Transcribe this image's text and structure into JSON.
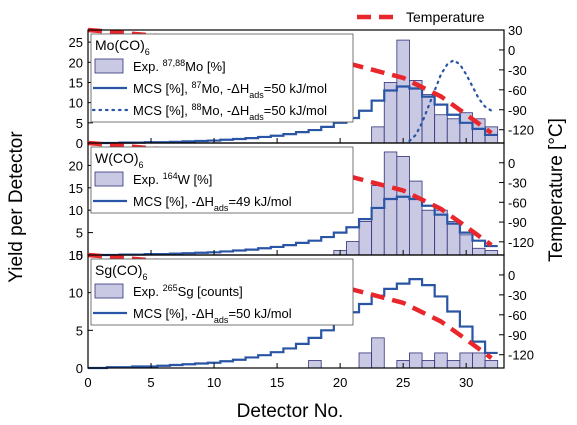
{
  "chart_data": {
    "type": "bar",
    "colors": {
      "bar_fill": "#c9c9e3",
      "bar_stroke": "#30307a",
      "mcs_line": "#2a55a5",
      "temperature": "#e8262b",
      "axis": "#000000"
    },
    "legend_top": {
      "label": "Temperature",
      "placement": "top-right"
    },
    "xlabel": "Detector No.",
    "ylabel_left": "Yield per Detector",
    "ylabel_right": "Temperature [°C]",
    "xlim": [
      0,
      33
    ],
    "x_ticks": [
      "0",
      "5",
      "10",
      "15",
      "20",
      "25",
      "30"
    ],
    "panels": [
      {
        "id": "mo",
        "compound": {
          "base": "Mo(CO)",
          "sub": "6"
        },
        "ylim": [
          0,
          28
        ],
        "y_ticks": [
          "0",
          "5",
          "10",
          "15",
          "20",
          "25"
        ],
        "temp_ticks": [
          "30",
          "0",
          "-30",
          "-60",
          "-90",
          "-120"
        ],
        "legend": [
          {
            "kind": "bar",
            "parts": [
              [
                "t",
                "Exp. "
              ],
              [
                "sup",
                "87,88"
              ],
              [
                "t",
                "Mo [%]"
              ]
            ]
          },
          {
            "kind": "solid",
            "parts": [
              [
                "t",
                "MCS [%], "
              ],
              [
                "sup",
                "87"
              ],
              [
                "t",
                "Mo, -ΔH"
              ],
              [
                "sub",
                "ads"
              ],
              [
                "t",
                "=50 kJ/mol"
              ]
            ]
          },
          {
            "kind": "dot",
            "parts": [
              [
                "t",
                "MCS [%], "
              ],
              [
                "sup",
                "88"
              ],
              [
                "t",
                "Mo, -ΔH"
              ],
              [
                "sub",
                "ads"
              ],
              [
                "t",
                "=50 kJ/mol"
              ]
            ]
          }
        ],
        "bars": [
          {
            "detector": 23,
            "value": 4
          },
          {
            "detector": 24,
            "value": 15
          },
          {
            "detector": 25,
            "value": 25.5
          },
          {
            "detector": 26,
            "value": 15.5
          },
          {
            "detector": 27,
            "value": 12
          },
          {
            "detector": 28,
            "value": 7
          },
          {
            "detector": 29,
            "value": 6
          },
          {
            "detector": 30,
            "value": 7.5
          },
          {
            "detector": 31,
            "value": 6
          },
          {
            "detector": 32,
            "value": 4
          }
        ],
        "mcs_solid": [
          0,
          0,
          0,
          0.1,
          0.1,
          0.2,
          0.2,
          0.3,
          0.4,
          0.5,
          0.6,
          0.8,
          1.0,
          1.2,
          1.5,
          1.8,
          2.2,
          2.7,
          3.2,
          4.0,
          5.0,
          6.2,
          8.0,
          10.5,
          13.0,
          14.0,
          13.5,
          11.5,
          9.5,
          7.0,
          5.0,
          3.5,
          2.0
        ],
        "mcs_dotted": [
          {
            "x": 25.5,
            "y": 0.5
          },
          {
            "x": 26,
            "y": 2
          },
          {
            "x": 26.5,
            "y": 5
          },
          {
            "x": 27,
            "y": 9
          },
          {
            "x": 27.5,
            "y": 13
          },
          {
            "x": 28,
            "y": 17
          },
          {
            "x": 28.5,
            "y": 19.5
          },
          {
            "x": 29,
            "y": 20.5
          },
          {
            "x": 29.5,
            "y": 19.5
          },
          {
            "x": 30,
            "y": 17
          },
          {
            "x": 30.5,
            "y": 14
          },
          {
            "x": 31,
            "y": 11
          },
          {
            "x": 31.5,
            "y": 9
          },
          {
            "x": 32,
            "y": 8
          }
        ],
        "temperature": [
          {
            "x": 0,
            "temp": 30
          },
          {
            "x": 5,
            "temp": 22
          },
          {
            "x": 10,
            "temp": 12
          },
          {
            "x": 15,
            "temp": 0
          },
          {
            "x": 20,
            "temp": -17
          },
          {
            "x": 25,
            "temp": -42
          },
          {
            "x": 28,
            "temp": -70
          },
          {
            "x": 30,
            "temp": -97
          },
          {
            "x": 32,
            "temp": -125
          }
        ]
      },
      {
        "id": "w",
        "compound": {
          "base": "W(CO)",
          "sub": "6"
        },
        "ylim": [
          0,
          25
        ],
        "y_ticks": [
          "0",
          "5",
          "10",
          "15",
          "20"
        ],
        "temp_ticks": [
          "0",
          "-30",
          "-60",
          "-90",
          "-120"
        ],
        "legend": [
          {
            "kind": "bar",
            "parts": [
              [
                "t",
                "Exp. "
              ],
              [
                "sup",
                "164"
              ],
              [
                "t",
                "W [%]"
              ]
            ]
          },
          {
            "kind": "solid",
            "parts": [
              [
                "t",
                "MCS [%], -ΔH"
              ],
              [
                "sub",
                "ads"
              ],
              [
                "t",
                "=49 kJ/mol"
              ]
            ]
          }
        ],
        "bars": [
          {
            "detector": 20,
            "value": 1
          },
          {
            "detector": 21,
            "value": 3
          },
          {
            "detector": 22,
            "value": 7.5
          },
          {
            "detector": 23,
            "value": 15.5
          },
          {
            "detector": 24,
            "value": 23
          },
          {
            "detector": 25,
            "value": 22
          },
          {
            "detector": 26,
            "value": 16.5
          },
          {
            "detector": 27,
            "value": 10
          },
          {
            "detector": 28,
            "value": 10
          },
          {
            "detector": 29,
            "value": 7.5
          },
          {
            "detector": 30,
            "value": 4.5
          },
          {
            "detector": 31,
            "value": 1.5
          },
          {
            "detector": 32,
            "value": 1
          }
        ],
        "mcs_solid": [
          0,
          0,
          0,
          0.1,
          0.1,
          0.2,
          0.2,
          0.3,
          0.4,
          0.5,
          0.6,
          0.8,
          1.0,
          1.2,
          1.5,
          1.8,
          2.2,
          2.7,
          3.2,
          4.0,
          5.0,
          6.2,
          8.0,
          10.5,
          12.5,
          13.0,
          12.5,
          11.0,
          9.0,
          7.0,
          5.0,
          3.2,
          2.0
        ],
        "temperature": [
          {
            "x": 0,
            "temp": 30
          },
          {
            "x": 5,
            "temp": 22
          },
          {
            "x": 10,
            "temp": 12
          },
          {
            "x": 15,
            "temp": 0
          },
          {
            "x": 20,
            "temp": -17
          },
          {
            "x": 25,
            "temp": -42
          },
          {
            "x": 28,
            "temp": -70
          },
          {
            "x": 30,
            "temp": -97
          },
          {
            "x": 32,
            "temp": -125
          }
        ]
      },
      {
        "id": "sg",
        "compound": {
          "base": "Sg(CO)",
          "sub": "6"
        },
        "ylim": [
          0,
          15
        ],
        "y_ticks": [
          "0",
          "5",
          "10",
          "15"
        ],
        "temp_ticks": [
          "0",
          "-30",
          "-60",
          "-90",
          "-120"
        ],
        "legend": [
          {
            "kind": "bar",
            "parts": [
              [
                "t",
                "Exp. "
              ],
              [
                "sup",
                "265"
              ],
              [
                "t",
                "Sg [counts]"
              ]
            ]
          },
          {
            "kind": "solid",
            "parts": [
              [
                "t",
                "MCS [%], -ΔH"
              ],
              [
                "sub",
                "ads"
              ],
              [
                "t",
                "=50 kJ/mol"
              ]
            ]
          }
        ],
        "bars": [
          {
            "detector": 18,
            "value": 1
          },
          {
            "detector": 22,
            "value": 2
          },
          {
            "detector": 23,
            "value": 4
          },
          {
            "detector": 25,
            "value": 1
          },
          {
            "detector": 26,
            "value": 2
          },
          {
            "detector": 27,
            "value": 1
          },
          {
            "detector": 28,
            "value": 2
          },
          {
            "detector": 29,
            "value": 1
          },
          {
            "detector": 30,
            "value": 2
          },
          {
            "detector": 31,
            "value": 2
          },
          {
            "detector": 32,
            "value": 1
          }
        ],
        "mcs_solid": [
          0,
          0,
          0.1,
          0.1,
          0.2,
          0.2,
          0.3,
          0.4,
          0.5,
          0.6,
          0.7,
          0.9,
          1.1,
          1.4,
          1.7,
          2.1,
          2.6,
          3.2,
          4.0,
          5.0,
          6.2,
          7.4,
          8.5,
          9.6,
          10.5,
          11.2,
          11.8,
          11.0,
          9.5,
          7.5,
          5.5,
          3.5,
          2.0
        ],
        "temperature": [
          {
            "x": 0,
            "temp": 30
          },
          {
            "x": 5,
            "temp": 22
          },
          {
            "x": 10,
            "temp": 12
          },
          {
            "x": 15,
            "temp": 0
          },
          {
            "x": 20,
            "temp": -17
          },
          {
            "x": 25,
            "temp": -42
          },
          {
            "x": 28,
            "temp": -70
          },
          {
            "x": 30,
            "temp": -97
          },
          {
            "x": 32,
            "temp": -125
          }
        ]
      }
    ]
  }
}
